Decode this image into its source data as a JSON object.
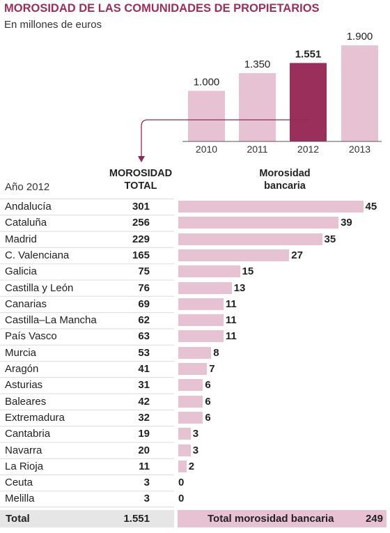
{
  "title": "MOROSIDAD DE LAS COMUNIDADES DE PROPIETARIOS",
  "subtitle": "En millones de euros",
  "chart_data": [
    {
      "type": "bar",
      "categories": [
        "2010",
        "2011",
        "2012",
        "2013"
      ],
      "values": [
        1000,
        1350,
        1551,
        1900
      ],
      "value_labels": [
        "1.000",
        "1.350",
        "1.551",
        "1.900"
      ],
      "highlight": "2012",
      "colors": {
        "default": "#e6c2d3",
        "highlight": "#9a2f5c"
      }
    },
    {
      "type": "table",
      "year_label": "Año 2012",
      "headers": {
        "total": [
          "MOROSIDAD",
          "TOTAL"
        ],
        "bank": [
          "Morosidad",
          "bancaria"
        ]
      },
      "rows": [
        {
          "region": "Andalucía",
          "total": "301",
          "bank": 45
        },
        {
          "region": "Cataluña",
          "total": "256",
          "bank": 39
        },
        {
          "region": "Madrid",
          "total": "229",
          "bank": 35
        },
        {
          "region": "C. Valenciana",
          "total": "165",
          "bank": 27
        },
        {
          "region": "Galicia",
          "total": "75",
          "bank": 15
        },
        {
          "region": "Castilla y León",
          "total": "76",
          "bank": 13
        },
        {
          "region": "Canarias",
          "total": "69",
          "bank": 11
        },
        {
          "region": "Castilla–La Mancha",
          "total": "62",
          "bank": 11
        },
        {
          "region": "País Vasco",
          "total": "63",
          "bank": 11
        },
        {
          "region": "Murcia",
          "total": "53",
          "bank": 8
        },
        {
          "region": "Aragón",
          "total": "41",
          "bank": 7
        },
        {
          "region": "Asturias",
          "total": "31",
          "bank": 6
        },
        {
          "region": "Baleares",
          "total": "42",
          "bank": 6
        },
        {
          "region": "Extremadura",
          "total": "32",
          "bank": 6
        },
        {
          "region": "Cantabria",
          "total": "19",
          "bank": 3
        },
        {
          "region": "Navarra",
          "total": "20",
          "bank": 3
        },
        {
          "region": "La Rioja",
          "total": "11",
          "bank": 2
        },
        {
          "region": "Ceuta",
          "total": "3",
          "bank": 0
        },
        {
          "region": "Melilla",
          "total": "3",
          "bank": 0
        }
      ],
      "footer": {
        "total_label": "Total",
        "total_value": "1.551",
        "bank_label": "Total morosidad bancaria",
        "bank_value": "249"
      },
      "colors": {
        "bar": "#e6c2d3",
        "band": "#e6e6e6"
      }
    }
  ]
}
